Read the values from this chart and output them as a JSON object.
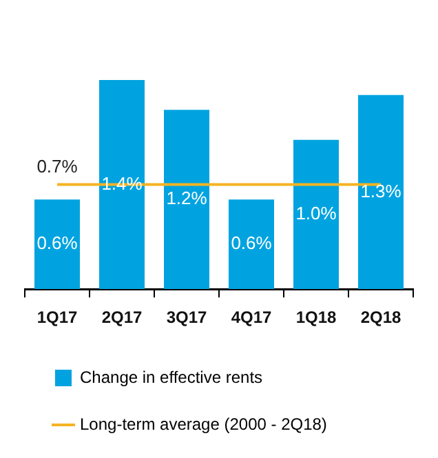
{
  "chart_data": {
    "type": "bar",
    "categories": [
      "1Q17",
      "2Q17",
      "3Q17",
      "4Q17",
      "1Q18",
      "2Q18"
    ],
    "series": [
      {
        "name": "Change in effective rents",
        "color": "#00a3e0",
        "values": [
          0.6,
          1.4,
          1.2,
          0.6,
          1.0,
          1.3
        ],
        "value_labels": [
          "0.6%",
          "1.4%",
          "1.2%",
          "0.6%",
          "1.0%",
          "1.3%"
        ]
      },
      {
        "type": "line",
        "name": "Long-term average (2000 - 2Q18)",
        "color": "#f5b324",
        "values": [
          0.7,
          0.7,
          0.7,
          0.7,
          0.7,
          0.7
        ],
        "value_labels": [
          "0.7%",
          null,
          null,
          null,
          null,
          null
        ]
      }
    ],
    "legend": "bottom",
    "grid": false,
    "tick_labels": "x",
    "marker": "none"
  }
}
